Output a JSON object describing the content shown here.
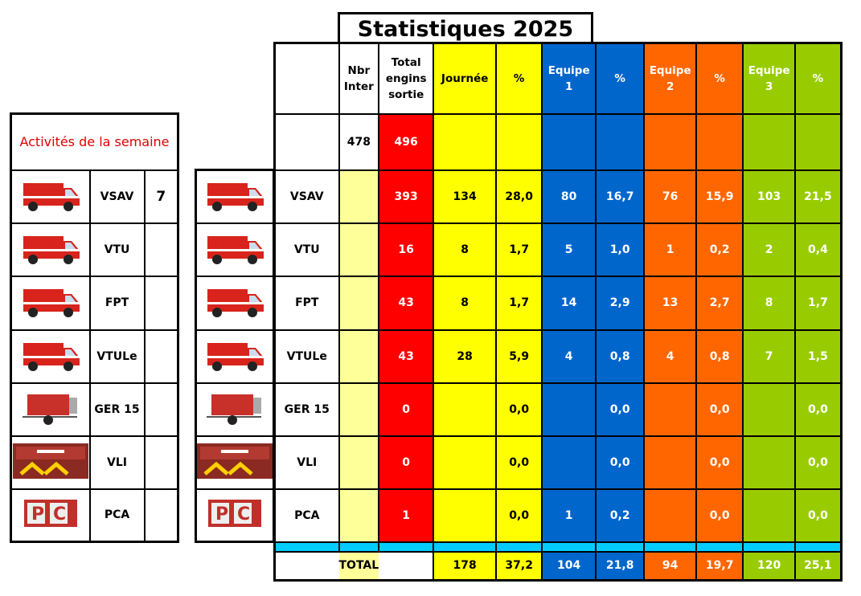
{
  "title": "Statistiques 2025",
  "colors": {
    "journee": "#ffff00",
    "nbr": "#ffff99",
    "total": "#ff0000",
    "equipe1": "#0066cc",
    "equipe2": "#ff6600",
    "equipe3": "#99cc00",
    "separator": "#00ccff"
  },
  "headers": {
    "nbr": "Nbr Inter",
    "total": "Total engins sortie",
    "journee": "Journée",
    "pct": "%",
    "equipe1": "Equipe 1",
    "equipe2": "Equipe 2",
    "equipe3": "Equipe 3"
  },
  "summary": {
    "nbr_inter": "478",
    "total_engins": "496"
  },
  "rows": [
    {
      "vehicle": "VSAV",
      "icon": "ambulance-icon",
      "cells": [
        "",
        "393",
        "134",
        "28,0",
        "80",
        "16,7",
        "76",
        "15,9",
        "103",
        "21,5"
      ]
    },
    {
      "vehicle": "VTU",
      "icon": "utility-truck-icon",
      "cells": [
        "",
        "16",
        "8",
        "1,7",
        "5",
        "1,0",
        "1",
        "0,2",
        "2",
        "0,4"
      ]
    },
    {
      "vehicle": "FPT",
      "icon": "fire-engine-icon",
      "cells": [
        "",
        "43",
        "8",
        "1,7",
        "14",
        "2,9",
        "13",
        "2,7",
        "8",
        "1,7"
      ]
    },
    {
      "vehicle": "VTULe",
      "icon": "light-van-icon",
      "cells": [
        "",
        "43",
        "28",
        "5,9",
        "4",
        "0,8",
        "4",
        "0,8",
        "7",
        "1,5"
      ]
    },
    {
      "vehicle": "GER 15",
      "icon": "generator-trailer-icon",
      "cells": [
        "",
        "0",
        "",
        "0,0",
        "",
        "0,0",
        "",
        "0,0",
        "",
        "0,0"
      ]
    },
    {
      "vehicle": "VLI",
      "icon": "car-front-icon",
      "cells": [
        "",
        "0",
        "",
        "0,0",
        "",
        "0,0",
        "",
        "0,0",
        "",
        "0,0"
      ]
    },
    {
      "vehicle": "PCA",
      "icon": "command-post-icon",
      "cells": [
        "",
        "1",
        "",
        "0,0",
        "1",
        "0,2",
        "",
        "0,0",
        "",
        "0,0"
      ]
    }
  ],
  "total": {
    "label": "TOTAL",
    "cells": [
      "178",
      "37,2",
      "104",
      "21,8",
      "94",
      "19,7",
      "120",
      "25,1"
    ]
  },
  "week": {
    "title": "Activités de la semaine",
    "counts": [
      "7",
      "",
      "",
      "",
      "",
      "",
      ""
    ]
  }
}
